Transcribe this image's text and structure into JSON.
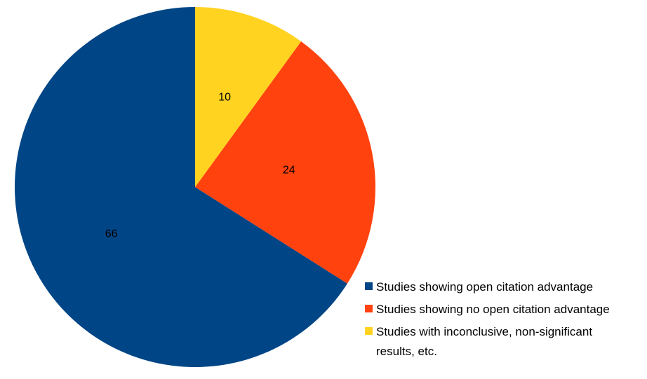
{
  "chart_data": {
    "type": "pie",
    "title": "",
    "slices": [
      {
        "label": "Studies showing open citation advantage",
        "legend_lines": [
          "Studies showing open citation advantage"
        ],
        "value": 66,
        "display": "66",
        "color": "#004586"
      },
      {
        "label": "Studies showing no open citation advantage",
        "legend_lines": [
          "Studies showing no open citation advantage"
        ],
        "value": 24,
        "display": "24",
        "color": "#ff420e"
      },
      {
        "label": "Studies with inconclusive, non-significant results, etc.",
        "legend_lines": [
          "Studies with inconclusive, non-significant",
          "results, etc."
        ],
        "value": 10,
        "display": "10",
        "color": "#ffd320"
      }
    ],
    "start_angle_deg": 0,
    "direction": "counterclockwise",
    "legend_position": "right"
  }
}
